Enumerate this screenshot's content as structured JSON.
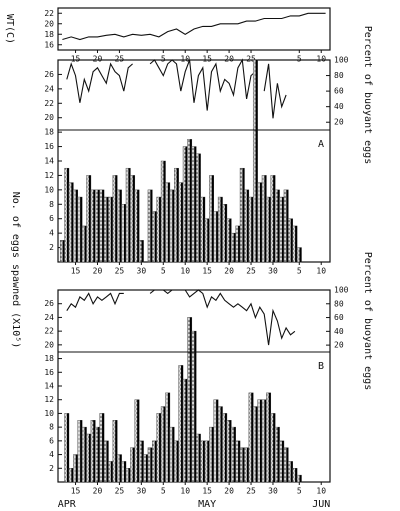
{
  "chart_data": [
    {
      "type": "line",
      "ylabel": "WT(C)",
      "color": "#111111",
      "x": [
        12,
        14,
        16,
        18,
        20,
        22,
        24,
        26,
        28,
        30,
        32,
        34,
        36,
        38,
        40,
        42,
        44,
        46,
        48,
        50,
        52,
        54,
        56,
        58,
        60,
        62,
        64,
        66,
        68,
        70,
        72
      ],
      "values": [
        17,
        17.5,
        17,
        17.5,
        17.5,
        17.8,
        18,
        17.5,
        18,
        17.8,
        18,
        17.5,
        18.5,
        19,
        18,
        19,
        19.5,
        19.5,
        20,
        20,
        20,
        20.5,
        20.5,
        21,
        21,
        21,
        21.5,
        21.5,
        22,
        22,
        22
      ],
      "xlim": [
        11,
        73
      ],
      "ylim": [
        15,
        23
      ],
      "yticks": [
        16,
        18,
        20,
        22
      ],
      "xticks": [
        15,
        20,
        25,
        {
          "value": 35,
          "label": "5"
        },
        {
          "value": 40,
          "label": "10"
        },
        {
          "value": 45,
          "label": "15"
        },
        {
          "value": 50,
          "label": "20"
        },
        {
          "value": 55,
          "label": "25"
        },
        {
          "value": 66,
          "label": "5"
        },
        {
          "value": 71,
          "label": "10"
        }
      ]
    },
    {
      "type": "line",
      "ylabel": "Percent of buoyant eggs",
      "color": "#111111",
      "x": [
        12,
        13,
        14,
        15,
        16,
        17,
        18,
        19,
        20,
        21,
        22,
        23,
        24,
        25,
        26,
        27,
        28,
        29,
        30,
        31,
        32,
        33,
        34,
        35,
        36,
        37,
        38,
        39,
        40,
        41,
        42,
        43,
        44,
        45,
        46,
        47,
        48,
        49,
        50,
        51,
        52,
        53,
        54,
        55,
        56,
        57,
        58,
        59,
        60,
        61,
        62,
        63,
        64,
        65,
        66
      ],
      "values": [
        null,
        75,
        95,
        80,
        45,
        75,
        60,
        85,
        90,
        80,
        70,
        95,
        85,
        80,
        60,
        90,
        95,
        null,
        null,
        null,
        95,
        100,
        90,
        80,
        95,
        100,
        95,
        60,
        85,
        100,
        45,
        80,
        90,
        35,
        85,
        95,
        60,
        75,
        70,
        55,
        90,
        100,
        50,
        80,
        85,
        null,
        60,
        95,
        25,
        70,
        40,
        55,
        null,
        null,
        null
      ],
      "xlim": [
        11,
        73
      ],
      "ylim": [
        10,
        100
      ],
      "yticks": [
        20,
        40,
        60,
        80,
        100
      ]
    },
    {
      "type": "bar",
      "ylabel": "No. of eggs spawned (X10⁵)",
      "panel_label": "A",
      "color": "#555555",
      "x": [
        12,
        13,
        14,
        15,
        16,
        17,
        18,
        19,
        20,
        21,
        22,
        23,
        24,
        25,
        26,
        27,
        28,
        29,
        30,
        31,
        32,
        33,
        34,
        35,
        36,
        37,
        38,
        39,
        40,
        41,
        42,
        43,
        44,
        45,
        46,
        47,
        48,
        49,
        50,
        51,
        52,
        53,
        54,
        55,
        56,
        57,
        58,
        59,
        60,
        61,
        62,
        63,
        64,
        65,
        66
      ],
      "values": [
        3,
        13,
        11,
        10,
        9,
        5,
        12,
        10,
        10,
        10,
        9,
        9,
        12,
        10,
        8,
        13,
        12,
        10,
        3,
        0,
        10,
        7,
        9,
        14,
        11,
        10,
        13,
        11,
        16,
        17,
        16,
        15,
        9,
        6,
        12,
        7,
        9,
        8,
        6,
        4,
        5,
        13,
        10,
        9,
        28,
        11,
        12,
        9,
        12,
        10,
        9,
        10,
        6,
        5,
        2
      ],
      "xlim": [
        11,
        73
      ],
      "ylim": [
        0,
        28
      ],
      "yticks": [
        2,
        4,
        6,
        8,
        10,
        12,
        14,
        16,
        18,
        20,
        22,
        24,
        26
      ],
      "xticks": [
        15,
        20,
        25,
        30,
        {
          "value": 35,
          "label": "5"
        },
        {
          "value": 40,
          "label": "10"
        },
        {
          "value": 45,
          "label": "15"
        },
        {
          "value": 50,
          "label": "20"
        },
        {
          "value": 55,
          "label": "25"
        },
        {
          "value": 60,
          "label": "30"
        },
        {
          "value": 66,
          "label": "5"
        },
        {
          "value": 71,
          "label": "10"
        }
      ]
    },
    {
      "type": "line",
      "ylabel": "Percent of buoyant eggs",
      "color": "#111111",
      "x": [
        12,
        13,
        14,
        15,
        16,
        17,
        18,
        19,
        20,
        21,
        22,
        23,
        24,
        25,
        26,
        27,
        28,
        29,
        30,
        31,
        32,
        33,
        34,
        35,
        36,
        37,
        38,
        39,
        40,
        41,
        42,
        43,
        44,
        45,
        46,
        47,
        48,
        49,
        50,
        51,
        52,
        53,
        54,
        55,
        56,
        57,
        58,
        59,
        60,
        61,
        62,
        63,
        64,
        65,
        66
      ],
      "values": [
        null,
        70,
        80,
        75,
        90,
        85,
        95,
        80,
        90,
        85,
        90,
        95,
        80,
        95,
        95,
        null,
        null,
        null,
        null,
        null,
        95,
        100,
        100,
        100,
        95,
        100,
        100,
        100,
        100,
        90,
        95,
        100,
        95,
        75,
        90,
        85,
        95,
        85,
        80,
        75,
        80,
        75,
        70,
        80,
        60,
        75,
        65,
        20,
        70,
        55,
        30,
        45,
        35,
        40,
        null
      ],
      "xlim": [
        11,
        73
      ],
      "ylim": [
        10,
        100
      ],
      "yticks": [
        20,
        40,
        60,
        80,
        100
      ]
    },
    {
      "type": "bar",
      "panel_label": "B",
      "color": "#555555",
      "x": [
        12,
        13,
        14,
        15,
        16,
        17,
        18,
        19,
        20,
        21,
        22,
        23,
        24,
        25,
        26,
        27,
        28,
        29,
        30,
        31,
        32,
        33,
        34,
        35,
        36,
        37,
        38,
        39,
        40,
        41,
        42,
        43,
        44,
        45,
        46,
        47,
        48,
        49,
        50,
        51,
        52,
        53,
        54,
        55,
        56,
        57,
        58,
        59,
        60,
        61,
        62,
        63,
        64,
        65,
        66
      ],
      "values": [
        0,
        10,
        2,
        4,
        9,
        8,
        7,
        9,
        8,
        10,
        6,
        3,
        9,
        4,
        3,
        2,
        5,
        12,
        6,
        4,
        5,
        6,
        10,
        11,
        13,
        8,
        6,
        17,
        15,
        24,
        22,
        7,
        6,
        6,
        8,
        12,
        11,
        10,
        9,
        8,
        6,
        5,
        5,
        13,
        11,
        12,
        12,
        13,
        10,
        8,
        6,
        5,
        3,
        2,
        1
      ],
      "xlim": [
        11,
        73
      ],
      "ylim": [
        0,
        28
      ],
      "yticks": [
        2,
        4,
        6,
        8,
        10,
        12,
        14,
        16,
        18,
        20,
        22,
        24,
        26
      ],
      "xticks": [
        15,
        20,
        25,
        30,
        {
          "value": 35,
          "label": "5"
        },
        {
          "value": 40,
          "label": "10"
        },
        {
          "value": 45,
          "label": "15"
        },
        {
          "value": 50,
          "label": "20"
        },
        {
          "value": 55,
          "label": "25"
        },
        {
          "value": 60,
          "label": "30"
        },
        {
          "value": 66,
          "label": "5"
        },
        {
          "value": 71,
          "label": "10"
        }
      ],
      "month_labels": [
        {
          "value": 13,
          "label": "APR"
        },
        {
          "value": 45,
          "label": "MAY"
        },
        {
          "value": 71,
          "label": "JUN"
        }
      ]
    }
  ]
}
